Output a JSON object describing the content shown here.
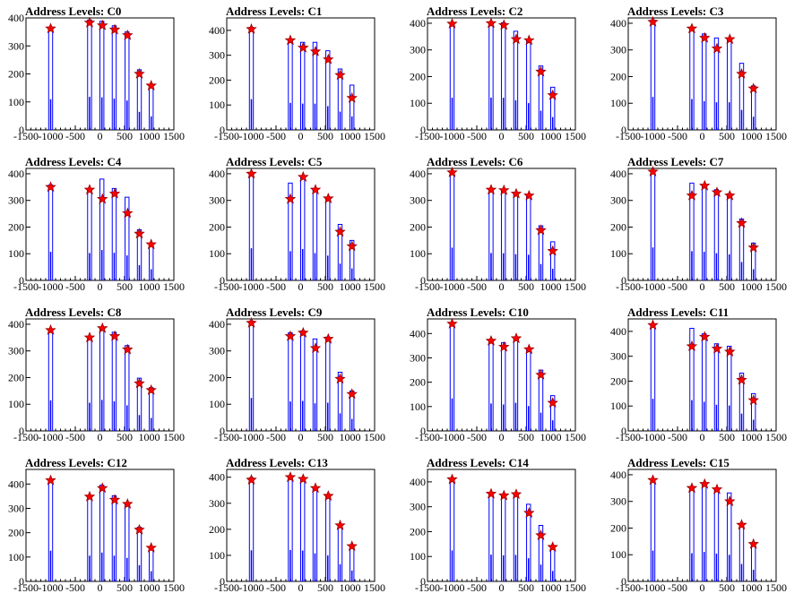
{
  "chart_data": [
    {
      "type": "bar",
      "title": "Address Levels: C0",
      "xlim": [
        -1500,
        1500
      ],
      "ylim": [
        0,
        400
      ],
      "x_ticks": [
        -1500,
        -1000,
        -500,
        0,
        500,
        1000,
        1500
      ],
      "y_ticks": [
        0,
        100,
        200,
        300,
        400
      ],
      "markers": {
        "x": [
          -1000,
          -210,
          50,
          300,
          560,
          800,
          1040
        ],
        "y": [
          362,
          383,
          373,
          358,
          338,
          200,
          158
        ]
      },
      "peaks": [
        {
          "x": -1000,
          "y": 365
        },
        {
          "x": -210,
          "y": 393
        },
        {
          "x": 40,
          "y": 388
        },
        {
          "x": 290,
          "y": 372
        },
        {
          "x": 550,
          "y": 350
        },
        {
          "x": 800,
          "y": 215
        },
        {
          "x": 1040,
          "y": 160
        }
      ]
    },
    {
      "type": "bar",
      "title": "Address Levels: C1",
      "xlim": [
        -1500,
        1500
      ],
      "ylim": [
        0,
        450
      ],
      "x_ticks": [
        -1500,
        -1000,
        -500,
        0,
        500,
        1000,
        1500
      ],
      "y_ticks": [
        0,
        100,
        200,
        300,
        400
      ],
      "markers": {
        "x": [
          -1000,
          -210,
          50,
          300,
          560,
          800,
          1040
        ],
        "y": [
          405,
          360,
          330,
          315,
          283,
          220,
          128
        ]
      },
      "peaks": [
        {
          "x": -1000,
          "y": 412
        },
        {
          "x": -210,
          "y": 362
        },
        {
          "x": 40,
          "y": 352
        },
        {
          "x": 290,
          "y": 352
        },
        {
          "x": 550,
          "y": 318
        },
        {
          "x": 800,
          "y": 245
        },
        {
          "x": 1040,
          "y": 180
        }
      ]
    },
    {
      "type": "bar",
      "title": "Address Levels: C2",
      "xlim": [
        -1500,
        1500
      ],
      "ylim": [
        0,
        420
      ],
      "x_ticks": [
        -1500,
        -1000,
        -500,
        0,
        500,
        1000,
        1500
      ],
      "y_ticks": [
        0,
        100,
        200,
        300,
        400
      ],
      "markers": {
        "x": [
          -1000,
          -210,
          50,
          300,
          560,
          800,
          1040
        ],
        "y": [
          398,
          400,
          393,
          340,
          336,
          218,
          130
        ]
      },
      "peaks": [
        {
          "x": -1000,
          "y": 403
        },
        {
          "x": -210,
          "y": 403
        },
        {
          "x": 40,
          "y": 402
        },
        {
          "x": 290,
          "y": 370
        },
        {
          "x": 550,
          "y": 335
        },
        {
          "x": 800,
          "y": 240
        },
        {
          "x": 1040,
          "y": 160
        }
      ]
    },
    {
      "type": "bar",
      "title": "Address Levels: C3",
      "xlim": [
        -1500,
        1500
      ],
      "ylim": [
        0,
        420
      ],
      "x_ticks": [
        -1500,
        -1000,
        -500,
        0,
        500,
        1000,
        1500
      ],
      "y_ticks": [
        0,
        100,
        200,
        300,
        400
      ],
      "markers": {
        "x": [
          -1000,
          -210,
          50,
          300,
          560,
          800,
          1040
        ],
        "y": [
          405,
          380,
          345,
          305,
          340,
          210,
          155
        ]
      },
      "peaks": [
        {
          "x": -1000,
          "y": 412
        },
        {
          "x": -210,
          "y": 385
        },
        {
          "x": 40,
          "y": 360
        },
        {
          "x": 290,
          "y": 345
        },
        {
          "x": 550,
          "y": 345
        },
        {
          "x": 800,
          "y": 250
        },
        {
          "x": 1040,
          "y": 165
        }
      ]
    },
    {
      "type": "bar",
      "title": "Address Levels: C4",
      "xlim": [
        -1500,
        1500
      ],
      "ylim": [
        0,
        420
      ],
      "x_ticks": [
        -1500,
        -1000,
        -500,
        0,
        500,
        1000,
        1500
      ],
      "y_ticks": [
        0,
        100,
        200,
        300,
        400
      ],
      "markers": {
        "x": [
          -1000,
          -210,
          50,
          300,
          560,
          800,
          1040
        ],
        "y": [
          350,
          340,
          305,
          325,
          252,
          175,
          135
        ]
      },
      "peaks": [
        {
          "x": -1000,
          "y": 358
        },
        {
          "x": -210,
          "y": 342
        },
        {
          "x": 40,
          "y": 380
        },
        {
          "x": 290,
          "y": 345
        },
        {
          "x": 550,
          "y": 312
        },
        {
          "x": 800,
          "y": 190
        },
        {
          "x": 1040,
          "y": 140
        }
      ]
    },
    {
      "type": "bar",
      "title": "Address Levels: C5",
      "xlim": [
        -1500,
        1500
      ],
      "ylim": [
        0,
        420
      ],
      "x_ticks": [
        -1500,
        -1000,
        -500,
        0,
        500,
        1000,
        1500
      ],
      "y_ticks": [
        0,
        100,
        200,
        300,
        400
      ],
      "markers": {
        "x": [
          -1000,
          -210,
          50,
          300,
          560,
          800,
          1040
        ],
        "y": [
          400,
          305,
          388,
          340,
          307,
          182,
          128
        ]
      },
      "peaks": [
        {
          "x": -1000,
          "y": 402
        },
        {
          "x": -210,
          "y": 365
        },
        {
          "x": 40,
          "y": 392
        },
        {
          "x": 290,
          "y": 342
        },
        {
          "x": 550,
          "y": 310
        },
        {
          "x": 800,
          "y": 210
        },
        {
          "x": 1040,
          "y": 150
        }
      ]
    },
    {
      "type": "bar",
      "title": "Address Levels: C6",
      "xlim": [
        -1500,
        1500
      ],
      "ylim": [
        0,
        420
      ],
      "x_ticks": [
        -1500,
        -1000,
        -500,
        0,
        500,
        1000,
        1500
      ],
      "y_ticks": [
        0,
        100,
        200,
        300,
        400
      ],
      "markers": {
        "x": [
          -1000,
          -210,
          50,
          300,
          560,
          800,
          1040
        ],
        "y": [
          405,
          340,
          338,
          325,
          318,
          188,
          110
        ]
      },
      "peaks": [
        {
          "x": -1000,
          "y": 410
        },
        {
          "x": -210,
          "y": 342
        },
        {
          "x": 40,
          "y": 340
        },
        {
          "x": 290,
          "y": 328
        },
        {
          "x": 550,
          "y": 320
        },
        {
          "x": 800,
          "y": 205
        },
        {
          "x": 1040,
          "y": 145
        }
      ]
    },
    {
      "type": "bar",
      "title": "Address Levels: C7",
      "xlim": [
        -1500,
        1500
      ],
      "ylim": [
        0,
        420
      ],
      "x_ticks": [
        -1500,
        -1000,
        -500,
        0,
        500,
        1000,
        1500
      ],
      "y_ticks": [
        0,
        100,
        200,
        300,
        400
      ],
      "markers": {
        "x": [
          -1000,
          -210,
          50,
          300,
          560,
          800,
          1040
        ],
        "y": [
          408,
          318,
          355,
          330,
          318,
          215,
          123
        ]
      },
      "peaks": [
        {
          "x": -1000,
          "y": 412
        },
        {
          "x": -210,
          "y": 365
        },
        {
          "x": 40,
          "y": 358
        },
        {
          "x": 290,
          "y": 340
        },
        {
          "x": 550,
          "y": 325
        },
        {
          "x": 800,
          "y": 230
        },
        {
          "x": 1040,
          "y": 140
        }
      ]
    },
    {
      "type": "bar",
      "title": "Address Levels: C8",
      "xlim": [
        -1500,
        1500
      ],
      "ylim": [
        0,
        420
      ],
      "x_ticks": [
        -1500,
        -1000,
        -500,
        0,
        500,
        1000,
        1500
      ],
      "y_ticks": [
        0,
        100,
        200,
        300,
        400
      ],
      "markers": {
        "x": [
          -1000,
          -210,
          50,
          300,
          560,
          800,
          1040
        ],
        "y": [
          378,
          350,
          385,
          355,
          305,
          178,
          153
        ]
      },
      "peaks": [
        {
          "x": -1000,
          "y": 382
        },
        {
          "x": -210,
          "y": 352
        },
        {
          "x": 40,
          "y": 388
        },
        {
          "x": 290,
          "y": 370
        },
        {
          "x": 550,
          "y": 320
        },
        {
          "x": 800,
          "y": 198
        },
        {
          "x": 1040,
          "y": 162
        }
      ]
    },
    {
      "type": "bar",
      "title": "Address Levels: C9",
      "xlim": [
        -1500,
        1500
      ],
      "ylim": [
        0,
        420
      ],
      "x_ticks": [
        -1500,
        -1000,
        -500,
        0,
        500,
        1000,
        1500
      ],
      "y_ticks": [
        0,
        100,
        200,
        300,
        400
      ],
      "markers": {
        "x": [
          -1000,
          -210,
          50,
          300,
          560,
          800,
          1040
        ],
        "y": [
          405,
          355,
          368,
          310,
          345,
          195,
          138
        ]
      },
      "peaks": [
        {
          "x": -1000,
          "y": 412
        },
        {
          "x": -210,
          "y": 368
        },
        {
          "x": 40,
          "y": 375
        },
        {
          "x": 290,
          "y": 345
        },
        {
          "x": 550,
          "y": 352
        },
        {
          "x": 800,
          "y": 220
        },
        {
          "x": 1040,
          "y": 150
        }
      ]
    },
    {
      "type": "bar",
      "title": "Address Levels: C10",
      "xlim": [
        -1500,
        1500
      ],
      "ylim": [
        0,
        460
      ],
      "x_ticks": [
        -1500,
        -1000,
        -500,
        0,
        500,
        1000,
        1500
      ],
      "y_ticks": [
        0,
        100,
        200,
        300,
        400
      ],
      "markers": {
        "x": [
          -1000,
          -210,
          50,
          300,
          560,
          800,
          1040
        ],
        "y": [
          440,
          370,
          345,
          380,
          335,
          230,
          115
        ]
      },
      "peaks": [
        {
          "x": -1000,
          "y": 445
        },
        {
          "x": -210,
          "y": 375
        },
        {
          "x": 40,
          "y": 362
        },
        {
          "x": 290,
          "y": 385
        },
        {
          "x": 550,
          "y": 340
        },
        {
          "x": 800,
          "y": 250
        },
        {
          "x": 1040,
          "y": 145
        }
      ]
    },
    {
      "type": "bar",
      "title": "Address Levels: C11",
      "xlim": [
        -1500,
        1500
      ],
      "ylim": [
        0,
        450
      ],
      "x_ticks": [
        -1500,
        -1000,
        -500,
        0,
        500,
        1000,
        1500
      ],
      "y_ticks": [
        0,
        100,
        200,
        300,
        400
      ],
      "markers": {
        "x": [
          -1000,
          -210,
          50,
          300,
          560,
          800,
          1040
        ],
        "y": [
          425,
          340,
          378,
          330,
          318,
          205,
          123
        ]
      },
      "peaks": [
        {
          "x": -1000,
          "y": 430
        },
        {
          "x": -210,
          "y": 412
        },
        {
          "x": 40,
          "y": 390
        },
        {
          "x": 290,
          "y": 350
        },
        {
          "x": 550,
          "y": 340
        },
        {
          "x": 800,
          "y": 232
        },
        {
          "x": 1040,
          "y": 150
        }
      ]
    },
    {
      "type": "bar",
      "title": "Address Levels: C12",
      "xlim": [
        -1500,
        1500
      ],
      "ylim": [
        0,
        460
      ],
      "x_ticks": [
        -1500,
        -1000,
        -500,
        0,
        500,
        1000,
        1500
      ],
      "y_ticks": [
        0,
        100,
        200,
        300,
        400
      ],
      "markers": {
        "x": [
          -1000,
          -210,
          50,
          300,
          560,
          800,
          1040
        ],
        "y": [
          415,
          348,
          383,
          335,
          318,
          212,
          138
        ]
      },
      "peaks": [
        {
          "x": -1000,
          "y": 420
        },
        {
          "x": -210,
          "y": 352
        },
        {
          "x": 40,
          "y": 395
        },
        {
          "x": 290,
          "y": 352
        },
        {
          "x": 550,
          "y": 322
        },
        {
          "x": 800,
          "y": 222
        },
        {
          "x": 1040,
          "y": 140
        }
      ]
    },
    {
      "type": "bar",
      "title": "Address Levels: C13",
      "xlim": [
        -1500,
        1500
      ],
      "ylim": [
        0,
        430
      ],
      "x_ticks": [
        -1500,
        -1000,
        -500,
        0,
        500,
        1000,
        1500
      ],
      "y_ticks": [
        0,
        100,
        200,
        300,
        400
      ],
      "markers": {
        "x": [
          -1000,
          -210,
          50,
          300,
          560,
          800,
          1040
        ],
        "y": [
          390,
          400,
          393,
          358,
          328,
          215,
          135
        ]
      },
      "peaks": [
        {
          "x": -1000,
          "y": 398
        },
        {
          "x": -210,
          "y": 402
        },
        {
          "x": 40,
          "y": 395
        },
        {
          "x": 290,
          "y": 360
        },
        {
          "x": 550,
          "y": 332
        },
        {
          "x": 800,
          "y": 220
        },
        {
          "x": 1040,
          "y": 140
        }
      ]
    },
    {
      "type": "bar",
      "title": "Address Levels: C14",
      "xlim": [
        -1500,
        1500
      ],
      "ylim": [
        0,
        450
      ],
      "x_ticks": [
        -1500,
        -1000,
        -500,
        0,
        500,
        1000,
        1500
      ],
      "y_ticks": [
        0,
        100,
        200,
        300,
        400
      ],
      "markers": {
        "x": [
          -1000,
          -210,
          50,
          300,
          560,
          800,
          1040
        ],
        "y": [
          410,
          352,
          345,
          350,
          275,
          185,
          138
        ]
      },
      "peaks": [
        {
          "x": -1000,
          "y": 415
        },
        {
          "x": -210,
          "y": 358
        },
        {
          "x": 40,
          "y": 350
        },
        {
          "x": 290,
          "y": 355
        },
        {
          "x": 550,
          "y": 310
        },
        {
          "x": 800,
          "y": 225
        },
        {
          "x": 1040,
          "y": 140
        }
      ]
    },
    {
      "type": "bar",
      "title": "Address Levels: C15",
      "xlim": [
        -1500,
        1500
      ],
      "ylim": [
        0,
        420
      ],
      "x_ticks": [
        -1500,
        -1000,
        -500,
        0,
        500,
        1000,
        1500
      ],
      "y_ticks": [
        0,
        100,
        200,
        300,
        400
      ],
      "markers": {
        "x": [
          -1000,
          -210,
          50,
          300,
          560,
          800,
          1040
        ],
        "y": [
          380,
          350,
          365,
          345,
          300,
          212,
          140
        ]
      },
      "peaks": [
        {
          "x": -1000,
          "y": 385
        },
        {
          "x": -210,
          "y": 352
        },
        {
          "x": 40,
          "y": 368
        },
        {
          "x": 290,
          "y": 348
        },
        {
          "x": 550,
          "y": 332
        },
        {
          "x": 800,
          "y": 218
        },
        {
          "x": 1040,
          "y": 145
        }
      ]
    }
  ],
  "colors": {
    "histogram": "#0000ff",
    "marker_fill": "#ff0000",
    "marker_stroke": "#990000",
    "axis": "#000000"
  }
}
